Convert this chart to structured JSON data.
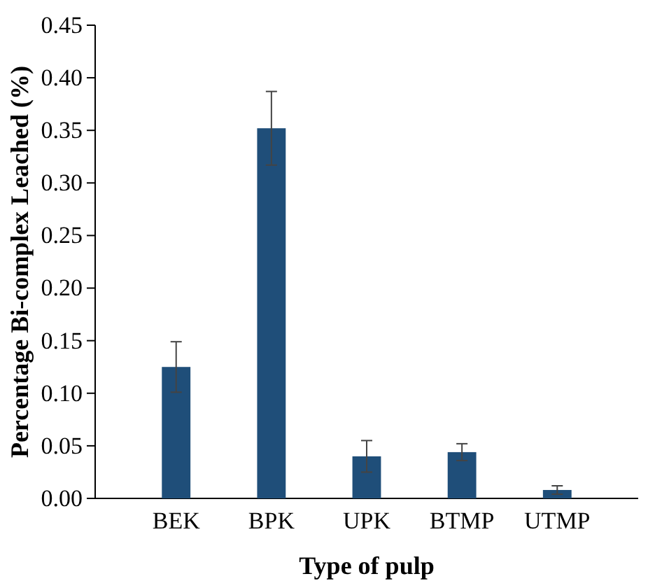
{
  "chart_data": {
    "type": "bar",
    "xlabel": "Type of pulp",
    "ylabel": "Percentage Bi-complex Leached (%)",
    "categories": [
      "BEK",
      "BPK",
      "UPK",
      "BTMP",
      "UTMP"
    ],
    "values": [
      0.125,
      0.352,
      0.04,
      0.044,
      0.008
    ],
    "errors": [
      0.024,
      0.035,
      0.015,
      0.008,
      0.004
    ],
    "color": "#1f4e79",
    "ylim": [
      0,
      0.45
    ],
    "yticks": [
      {
        "value": 0,
        "label": "0.00"
      },
      {
        "value": 0.05,
        "label": "0.05"
      },
      {
        "value": 0.1,
        "label": "0.10"
      },
      {
        "value": 0.15,
        "label": "0.15"
      },
      {
        "value": 0.2,
        "label": "0.20"
      },
      {
        "value": 0.25,
        "label": "0.25"
      },
      {
        "value": 0.3,
        "label": "0.30"
      },
      {
        "value": 0.35,
        "label": "0.35"
      },
      {
        "value": 0.4,
        "label": "0.40"
      },
      {
        "value": 0.45,
        "label": "0.45"
      }
    ],
    "grid": false
  }
}
